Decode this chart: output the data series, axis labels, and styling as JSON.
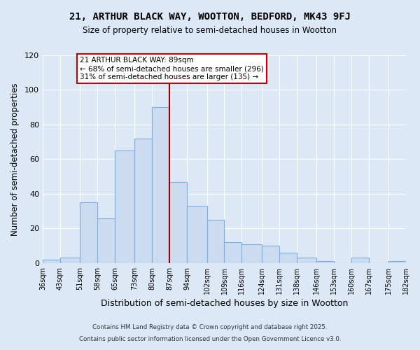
{
  "title": "21, ARTHUR BLACK WAY, WOOTTON, BEDFORD, MK43 9FJ",
  "subtitle": "Size of property relative to semi-detached houses in Wootton",
  "xlabel": "Distribution of semi-detached houses by size in Wootton",
  "ylabel": "Number of semi-detached properties",
  "bins": [
    36,
    43,
    51,
    58,
    65,
    73,
    80,
    87,
    94,
    102,
    109,
    116,
    124,
    131,
    138,
    146,
    153,
    160,
    167,
    175,
    182
  ],
  "counts": [
    2,
    3,
    35,
    26,
    65,
    72,
    90,
    47,
    33,
    25,
    12,
    11,
    10,
    6,
    3,
    1,
    0,
    3,
    0,
    1
  ],
  "tick_labels": [
    "36sqm",
    "43sqm",
    "51sqm",
    "58sqm",
    "65sqm",
    "73sqm",
    "80sqm",
    "87sqm",
    "94sqm",
    "102sqm",
    "109sqm",
    "116sqm",
    "124sqm",
    "131sqm",
    "138sqm",
    "146sqm",
    "153sqm",
    "160sqm",
    "167sqm",
    "175sqm",
    "182sqm"
  ],
  "bar_color": "#ccdcf0",
  "bar_edge_color": "#7aade0",
  "vline_x": 87,
  "vline_color": "#990000",
  "ylim": [
    0,
    120
  ],
  "yticks": [
    0,
    20,
    40,
    60,
    80,
    100,
    120
  ],
  "annotation_title": "21 ARTHUR BLACK WAY: 89sqm",
  "annotation_line1": "← 68% of semi-detached houses are smaller (296)",
  "annotation_line2": "31% of semi-detached houses are larger (135) →",
  "annotation_box_color": "#ffffff",
  "annotation_box_edge": "#cc0000",
  "footer1": "Contains HM Land Registry data © Crown copyright and database right 2025.",
  "footer2": "Contains public sector information licensed under the Open Government Licence v3.0.",
  "background_color": "#dce8f5",
  "plot_background": "#dce8f5",
  "grid_color": "#ffffff"
}
